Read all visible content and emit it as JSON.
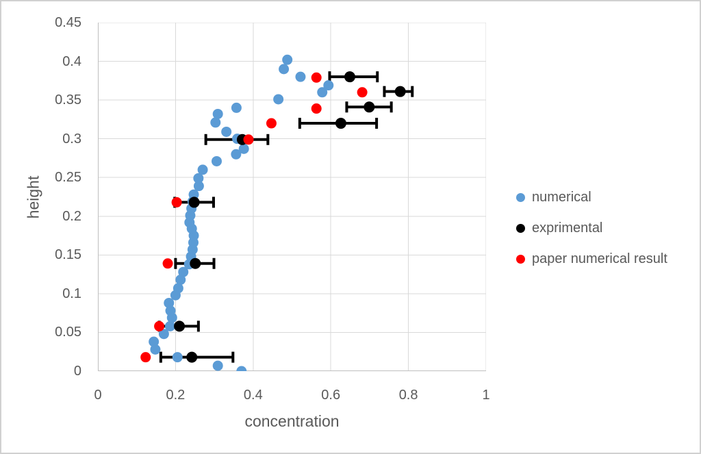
{
  "chart_data": {
    "type": "scatter",
    "title": "",
    "xlabel": "concentration",
    "ylabel": "height",
    "xlim": [
      0,
      1
    ],
    "ylim": [
      0,
      0.45
    ],
    "grid": true,
    "legend_position": "right-middle",
    "background_color": "#FFFFFF",
    "grid_color": "#D9D9D9",
    "axis_line_color": "#BFBFBF",
    "text_color": "#595959",
    "x_tick_labels": [
      "0",
      "0.2",
      "0.4",
      "0.6",
      "0.8",
      "1"
    ],
    "x_tick_values": [
      0,
      0.2,
      0.4,
      0.6,
      0.8,
      1
    ],
    "y_tick_labels": [
      "0.45",
      "0.4",
      "0.35",
      "0.3",
      "0.25",
      "0.2",
      "0.15",
      "0.1",
      "0.05",
      "0"
    ],
    "y_tick_values": [
      0.45,
      0.4,
      0.35,
      0.3,
      0.25,
      0.2,
      0.15,
      0.1,
      0.05,
      0
    ],
    "series": [
      {
        "name": "numerical",
        "color": "#5B9BD5",
        "marker": "circle",
        "points": [
          [
            0.37,
            0.0
          ],
          [
            0.309,
            0.007
          ],
          [
            0.205,
            0.018
          ],
          [
            0.148,
            0.028
          ],
          [
            0.144,
            0.038
          ],
          [
            0.17,
            0.048
          ],
          [
            0.186,
            0.058
          ],
          [
            0.191,
            0.069
          ],
          [
            0.187,
            0.078
          ],
          [
            0.183,
            0.088
          ],
          [
            0.2,
            0.098
          ],
          [
            0.207,
            0.107
          ],
          [
            0.213,
            0.118
          ],
          [
            0.22,
            0.128
          ],
          [
            0.235,
            0.138
          ],
          [
            0.24,
            0.148
          ],
          [
            0.244,
            0.157
          ],
          [
            0.246,
            0.166
          ],
          [
            0.247,
            0.175
          ],
          [
            0.242,
            0.184
          ],
          [
            0.236,
            0.192
          ],
          [
            0.238,
            0.201
          ],
          [
            0.241,
            0.21
          ],
          [
            0.244,
            0.219
          ],
          [
            0.247,
            0.228
          ],
          [
            0.26,
            0.239
          ],
          [
            0.259,
            0.249
          ],
          [
            0.27,
            0.26
          ],
          [
            0.306,
            0.271
          ],
          [
            0.356,
            0.28
          ],
          [
            0.376,
            0.287
          ],
          [
            0.359,
            0.3
          ],
          [
            0.331,
            0.309
          ],
          [
            0.303,
            0.321
          ],
          [
            0.309,
            0.332
          ],
          [
            0.357,
            0.34
          ],
          [
            0.465,
            0.351
          ],
          [
            0.578,
            0.36
          ],
          [
            0.594,
            0.369
          ],
          [
            0.522,
            0.38
          ],
          [
            0.479,
            0.39
          ],
          [
            0.488,
            0.402
          ]
        ]
      },
      {
        "name": "exprimental",
        "color": "#000000",
        "marker": "circle",
        "error_bar_axis": "x",
        "points": [
          {
            "x": 0.242,
            "y": 0.018,
            "x_low": 0.162,
            "x_high": 0.348
          },
          {
            "x": 0.21,
            "y": 0.058,
            "x_low": 0.158,
            "x_high": 0.259
          },
          {
            "x": 0.251,
            "y": 0.139,
            "x_low": 0.2,
            "x_high": 0.299
          },
          {
            "x": 0.248,
            "y": 0.218,
            "x_low": 0.198,
            "x_high": 0.298
          },
          {
            "x": 0.372,
            "y": 0.299,
            "x_low": 0.278,
            "x_high": 0.438
          },
          {
            "x": 0.626,
            "y": 0.32,
            "x_low": 0.52,
            "x_high": 0.718
          },
          {
            "x": 0.699,
            "y": 0.341,
            "x_low": 0.641,
            "x_high": 0.756
          },
          {
            "x": 0.779,
            "y": 0.361,
            "x_low": 0.738,
            "x_high": 0.81
          },
          {
            "x": 0.649,
            "y": 0.38,
            "x_low": 0.597,
            "x_high": 0.72
          }
        ]
      },
      {
        "name": "paper numerical result",
        "color": "#FF0000",
        "marker": "circle",
        "points": [
          [
            0.123,
            0.018
          ],
          [
            0.158,
            0.058
          ],
          [
            0.18,
            0.139
          ],
          [
            0.203,
            0.218
          ],
          [
            0.388,
            0.299
          ],
          [
            0.447,
            0.32
          ],
          [
            0.563,
            0.339
          ],
          [
            0.681,
            0.36
          ],
          [
            0.563,
            0.379
          ]
        ]
      }
    ]
  }
}
